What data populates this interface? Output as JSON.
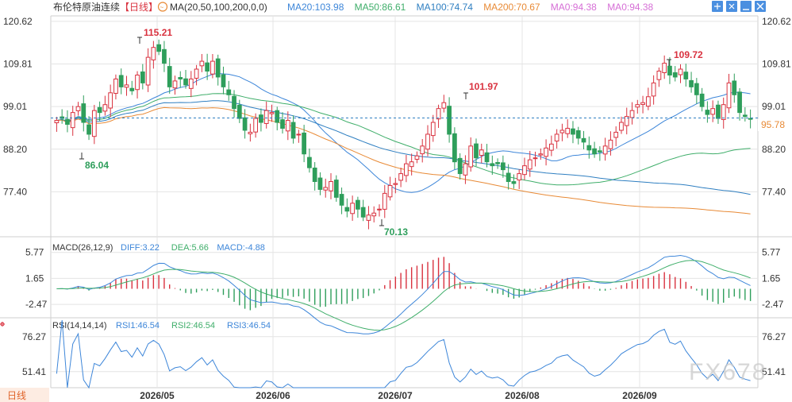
{
  "header": {
    "title": "布伦特原油连续",
    "period": "【日线】",
    "ma_label": "MA(20,50,100,200,0,0)",
    "ma_values": [
      {
        "text": "MA20:103.98",
        "color": "#3d86d9"
      },
      {
        "text": "MA50:86.61",
        "color": "#3fae6a"
      },
      {
        "text": "MA100:74.74",
        "color": "#2f7fc1"
      },
      {
        "text": "MA200:70.67",
        "color": "#e88a36"
      },
      {
        "text": "MA0:94.38",
        "color": "#d66fd6"
      },
      {
        "text": "MA0:94.38",
        "color": "#d66fd6"
      }
    ]
  },
  "toolbar": {
    "icons": [
      "fullscreen-icon",
      "zoom-icon",
      "minimize-icon",
      "close-icon"
    ]
  },
  "price_axis": {
    "ticks": [
      "120.62",
      "109.81",
      "99.01",
      "88.20",
      "77.40"
    ],
    "current": "95.78"
  },
  "annotations": {
    "high1": "115.21",
    "low1": "86.04",
    "high2": "101.97",
    "low2": "70.13",
    "high3": "109.72"
  },
  "macd": {
    "label": "MACD(26,12,9)",
    "values": [
      {
        "text": "DIFF:3.22",
        "color": "#3d86d9"
      },
      {
        "text": "DEA:5.66",
        "color": "#3fae6a"
      },
      {
        "text": "MACD:-4.88",
        "color": "#3d86d9"
      }
    ],
    "ticks": [
      "5.77",
      "1.65",
      "-2.47"
    ]
  },
  "rsi": {
    "label": "RSI(14,14,14)",
    "values": [
      {
        "text": "RSI1:46.54",
        "color": "#3d86d9"
      },
      {
        "text": "RSI2:46.54",
        "color": "#3fae6a"
      },
      {
        "text": "RSI3:46.54",
        "color": "#3d86d9"
      }
    ],
    "ticks": [
      "76.27",
      "51.41"
    ]
  },
  "x_axis": {
    "labels": [
      "2026/05",
      "2026/06",
      "2026/07",
      "2026/08",
      "2026/09"
    ]
  },
  "period_tab": "日线",
  "watermark": "FX678",
  "colors": {
    "up": "#d9323f",
    "down": "#2e9e5b",
    "grid": "#e4e4e4",
    "text": "#333333"
  },
  "chart_data": {
    "type": "candlestick",
    "title": "布伦特原油连续",
    "price_range": [
      66.0,
      122.0
    ],
    "labeled_prices": [
      120.62,
      109.81,
      99.01,
      88.2,
      77.4
    ],
    "last_price": 95.78,
    "swing_points": [
      {
        "label": "115.21",
        "value": 115.21
      },
      {
        "label": "86.04",
        "value": 86.04
      },
      {
        "label": "101.97",
        "value": 101.97
      },
      {
        "label": "70.13",
        "value": 70.13
      },
      {
        "label": "109.72",
        "value": 109.72
      }
    ],
    "closes": [
      95.5,
      96.0,
      94.5,
      97.5,
      99.0,
      95.0,
      92.0,
      98.0,
      97.5,
      99.5,
      102.5,
      106.0,
      104.0,
      104.5,
      103.0,
      107.0,
      105.0,
      111.5,
      114.0,
      113.0,
      110.0,
      104.0,
      105.5,
      106.0,
      104.5,
      106.0,
      108.5,
      110.5,
      108.0,
      110.5,
      106.5,
      104.0,
      102.0,
      98.5,
      96.0,
      93.0,
      92.5,
      96.0,
      95.0,
      98.0,
      97.5,
      95.0,
      93.5,
      95.5,
      91.0,
      92.0,
      87.0,
      83.5,
      80.0,
      78.0,
      78.5,
      80.0,
      76.0,
      74.0,
      72.5,
      74.5,
      73.0,
      71.0,
      71.5,
      72.0,
      73.0,
      77.0,
      79.0,
      79.5,
      82.0,
      84.5,
      85.0,
      86.5,
      89.0,
      92.0,
      95.0,
      98.5,
      100.0,
      92.0,
      85.0,
      82.0,
      84.5,
      89.0,
      86.0,
      88.0,
      85.0,
      84.0,
      84.5,
      83.0,
      80.0,
      79.5,
      82.0,
      84.0,
      85.5,
      86.0,
      87.0,
      88.5,
      89.5,
      92.0,
      93.0,
      93.5,
      92.0,
      91.0,
      90.0,
      88.0,
      87.0,
      87.5,
      89.0,
      90.5,
      92.5,
      95.0,
      96.5,
      98.0,
      99.5,
      100.0,
      101.5,
      105.0,
      108.0,
      110.0,
      107.0,
      106.5,
      108.5,
      106.0,
      104.0,
      102.0,
      99.0,
      97.0,
      98.5,
      96.0,
      99.5,
      105.0,
      102.0,
      97.5,
      96.5,
      95.78
    ],
    "series": [
      {
        "name": "MA20",
        "last_value": 103.98
      },
      {
        "name": "MA50",
        "last_value": 86.61
      },
      {
        "name": "MA100",
        "last_value": 74.74
      },
      {
        "name": "MA200",
        "last_value": 70.67
      }
    ],
    "macd_range": [
      -4.6,
      7.5
    ],
    "macd_ticks": [
      5.77,
      1.65,
      -2.47
    ],
    "rsi_range": [
      40,
      88
    ],
    "rsi_ticks": [
      76.27,
      51.41
    ],
    "x_categories": [
      "2026/05",
      "2026/06",
      "2026/07",
      "2026/08",
      "2026/09"
    ]
  }
}
